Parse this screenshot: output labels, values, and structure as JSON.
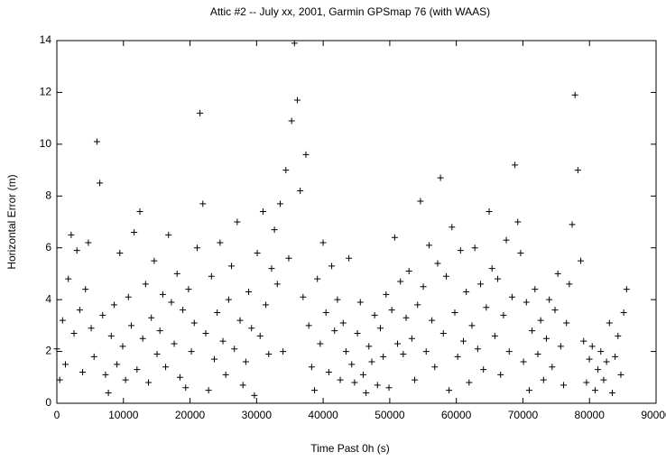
{
  "chart_data": {
    "type": "scatter",
    "title": "Attic #2 -- July xx, 2001, Garmin GPSmap 76 (with WAAS)",
    "x_label": "Time Past 0h  (s)",
    "y_label": "Horizontal Error  (m)",
    "color": "#000000",
    "marker": "+",
    "xlim": [
      0,
      90000
    ],
    "xticks": [
      0,
      10000,
      20000,
      30000,
      40000,
      50000,
      60000,
      70000,
      80000,
      90000
    ],
    "ylim": [
      0,
      14
    ],
    "yticks": [
      0,
      2,
      4,
      6,
      8,
      10,
      12,
      14
    ],
    "grid": false,
    "x": [
      0,
      430,
      860,
      1290,
      1720,
      2150,
      2580,
      3010,
      3440,
      3870,
      4300,
      4730,
      5160,
      5590,
      6020,
      6450,
      6880,
      7310,
      7740,
      8170,
      8600,
      9030,
      9460,
      9890,
      10320,
      10750,
      11180,
      11610,
      12040,
      12470,
      12900,
      13330,
      13760,
      14190,
      14620,
      15050,
      15480,
      15910,
      16340,
      16770,
      17200,
      17630,
      18060,
      18490,
      18920,
      19350,
      19780,
      20210,
      20640,
      21070,
      21500,
      21930,
      22360,
      22790,
      23220,
      23650,
      24080,
      24510,
      24940,
      25370,
      25800,
      26230,
      26660,
      27090,
      27520,
      27950,
      28380,
      28810,
      29240,
      29670,
      30100,
      30530,
      30960,
      31390,
      31820,
      32250,
      32680,
      33110,
      33540,
      33970,
      34400,
      34830,
      35260,
      35690,
      36120,
      36550,
      36980,
      37410,
      37840,
      38270,
      38700,
      39130,
      39560,
      39990,
      40420,
      40850,
      41280,
      41710,
      42140,
      42570,
      43000,
      43430,
      43860,
      44290,
      44720,
      45150,
      45580,
      46010,
      46440,
      46870,
      47300,
      47730,
      48160,
      48590,
      49020,
      49450,
      49880,
      50310,
      50740,
      51170,
      51600,
      52030,
      52460,
      52890,
      53320,
      53750,
      54180,
      54610,
      55040,
      55470,
      55900,
      56330,
      56760,
      57190,
      57620,
      58050,
      58480,
      58910,
      59340,
      59770,
      60200,
      60630,
      61060,
      61490,
      61920,
      62350,
      62780,
      63210,
      63640,
      64070,
      64500,
      64930,
      65360,
      65790,
      66220,
      66650,
      67080,
      67510,
      67940,
      68370,
      68800,
      69230,
      69660,
      70090,
      70520,
      70950,
      71380,
      71810,
      72240,
      72670,
      73100,
      73530,
      73960,
      74390,
      74820,
      75250,
      75680,
      76110,
      76540,
      76970,
      77400,
      77830,
      78260,
      78690,
      79120,
      79550,
      79980,
      80410,
      80840,
      81270,
      81700,
      82130,
      82560,
      82990,
      83420,
      83850,
      84280,
      84710,
      85140,
      85570
    ],
    "values": [
      2.1,
      0.9,
      3.2,
      1.5,
      4.8,
      6.5,
      2.7,
      5.9,
      3.6,
      1.2,
      4.4,
      6.2,
      2.9,
      1.8,
      10.1,
      8.5,
      3.4,
      1.1,
      0.4,
      2.6,
      3.8,
      1.5,
      5.8,
      2.2,
      0.9,
      4.1,
      3.0,
      6.6,
      1.3,
      7.4,
      2.5,
      4.6,
      0.8,
      3.3,
      5.5,
      1.9,
      2.8,
      4.2,
      1.4,
      6.5,
      3.9,
      2.3,
      5.0,
      1.0,
      3.6,
      0.6,
      4.4,
      2.0,
      3.1,
      6.0,
      11.2,
      7.7,
      2.7,
      0.5,
      4.9,
      1.7,
      3.5,
      6.2,
      2.4,
      1.1,
      4.0,
      5.3,
      2.1,
      7.0,
      3.2,
      0.7,
      1.6,
      4.3,
      2.9,
      0.3,
      5.8,
      2.6,
      7.4,
      3.8,
      1.9,
      5.2,
      6.7,
      4.6,
      7.7,
      2.0,
      9.0,
      5.6,
      10.9,
      13.9,
      11.7,
      8.2,
      4.1,
      9.6,
      3.0,
      1.4,
      0.5,
      4.8,
      2.3,
      6.2,
      3.5,
      1.2,
      5.3,
      2.8,
      4.0,
      0.9,
      3.1,
      2.0,
      5.6,
      1.5,
      0.8,
      2.7,
      3.9,
      1.1,
      0.4,
      2.2,
      1.6,
      3.4,
      0.7,
      2.9,
      1.8,
      4.2,
      0.6,
      3.6,
      6.4,
      2.3,
      4.7,
      1.9,
      3.3,
      5.1,
      2.5,
      0.9,
      3.8,
      7.8,
      4.5,
      2.0,
      6.1,
      3.2,
      1.4,
      5.4,
      8.7,
      2.7,
      4.9,
      0.5,
      6.8,
      3.5,
      1.8,
      5.9,
      2.4,
      4.3,
      0.8,
      3.0,
      6.0,
      2.1,
      4.6,
      1.3,
      3.7,
      7.4,
      5.2,
      2.6,
      4.8,
      1.1,
      3.4,
      6.3,
      2.0,
      4.1,
      9.2,
      7.0,
      5.8,
      1.6,
      3.9,
      0.5,
      2.8,
      4.4,
      1.9,
      3.2,
      0.9,
      2.5,
      4.0,
      1.4,
      3.6,
      5.0,
      2.2,
      0.7,
      3.1,
      4.6,
      6.9,
      11.9,
      9.0,
      5.5,
      2.4,
      0.8,
      1.7,
      2.2,
      0.5,
      1.3,
      2.0,
      0.9,
      1.6,
      3.1,
      0.4,
      1.8,
      2.6,
      1.1,
      3.5,
      4.4
    ]
  }
}
